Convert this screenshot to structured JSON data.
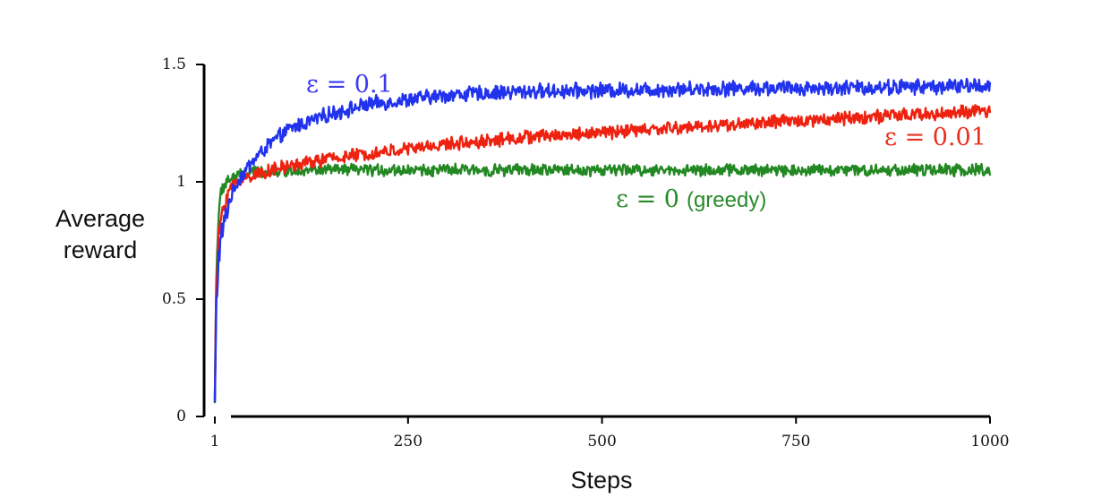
{
  "chart_data": {
    "type": "line",
    "title": "",
    "xlabel": "Steps",
    "ylabel": [
      "Average",
      "reward"
    ],
    "xlim": [
      1,
      1000
    ],
    "ylim": [
      0,
      1.5
    ],
    "x_ticks": [
      {
        "value": 1,
        "label": "1"
      },
      {
        "value": 250,
        "label": "250"
      },
      {
        "value": 500,
        "label": "500"
      },
      {
        "value": 750,
        "label": "750"
      },
      {
        "value": 1000,
        "label": "1000"
      }
    ],
    "y_ticks": [
      {
        "value": 0,
        "label": "0"
      },
      {
        "value": 0.5,
        "label": "0.5"
      },
      {
        "value": 1,
        "label": "1"
      },
      {
        "value": 1.5,
        "label": "1.5"
      }
    ],
    "grid": false,
    "legend": "inline labels",
    "series": [
      {
        "name": "ε = 0.1",
        "label_main": "ε = 0.1",
        "label_suffix": "",
        "color": "#2233ee",
        "noise": 0.028,
        "anchors": [
          [
            1,
            0.05
          ],
          [
            3,
            0.48
          ],
          [
            6,
            0.68
          ],
          [
            10,
            0.78
          ],
          [
            20,
            0.92
          ],
          [
            30,
            1.0
          ],
          [
            50,
            1.09
          ],
          [
            75,
            1.17
          ],
          [
            100,
            1.23
          ],
          [
            150,
            1.29
          ],
          [
            200,
            1.33
          ],
          [
            250,
            1.35
          ],
          [
            300,
            1.37
          ],
          [
            400,
            1.385
          ],
          [
            500,
            1.39
          ],
          [
            600,
            1.395
          ],
          [
            700,
            1.4
          ],
          [
            800,
            1.4
          ],
          [
            900,
            1.405
          ],
          [
            1000,
            1.41
          ]
        ]
      },
      {
        "name": "ε = 0.01",
        "label_main": "ε = 0.01",
        "label_suffix": "",
        "color": "#ee2211",
        "noise": 0.025,
        "anchors": [
          [
            1,
            0.1
          ],
          [
            3,
            0.55
          ],
          [
            6,
            0.76
          ],
          [
            10,
            0.87
          ],
          [
            20,
            0.97
          ],
          [
            30,
            1.0
          ],
          [
            50,
            1.03
          ],
          [
            100,
            1.07
          ],
          [
            150,
            1.1
          ],
          [
            200,
            1.12
          ],
          [
            250,
            1.14
          ],
          [
            300,
            1.16
          ],
          [
            400,
            1.19
          ],
          [
            500,
            1.21
          ],
          [
            600,
            1.23
          ],
          [
            700,
            1.25
          ],
          [
            800,
            1.27
          ],
          [
            900,
            1.285
          ],
          [
            1000,
            1.3
          ]
        ]
      },
      {
        "name": "ε = 0 (greedy)",
        "label_main": "ε = 0",
        "label_suffix": "(greedy)",
        "color": "#228822",
        "noise": 0.022,
        "anchors": [
          [
            1,
            0.06
          ],
          [
            3,
            0.62
          ],
          [
            6,
            0.86
          ],
          [
            10,
            0.96
          ],
          [
            15,
            1.0
          ],
          [
            25,
            1.02
          ],
          [
            50,
            1.04
          ],
          [
            100,
            1.05
          ],
          [
            200,
            1.05
          ],
          [
            400,
            1.05
          ],
          [
            600,
            1.05
          ],
          [
            800,
            1.05
          ],
          [
            1000,
            1.05
          ]
        ]
      }
    ]
  }
}
